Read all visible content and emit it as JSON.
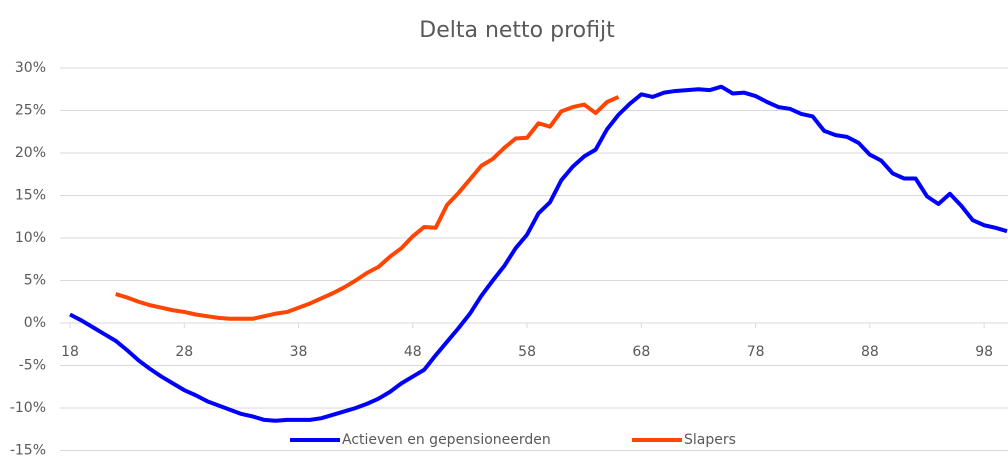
{
  "chart_data": {
    "type": "line",
    "title": "Delta netto profijt",
    "x": [
      18,
      19,
      20,
      21,
      22,
      23,
      24,
      25,
      26,
      27,
      28,
      29,
      30,
      31,
      32,
      33,
      34,
      35,
      36,
      37,
      38,
      39,
      40,
      41,
      42,
      43,
      44,
      45,
      46,
      47,
      48,
      49,
      50,
      51,
      52,
      53,
      54,
      55,
      56,
      57,
      58,
      59,
      60,
      61,
      62,
      63,
      64,
      65,
      66,
      67,
      68,
      69,
      70,
      71,
      72,
      73,
      74,
      75,
      76,
      77,
      78,
      79,
      80,
      81,
      82,
      83,
      84,
      85,
      86,
      87,
      88,
      89,
      90,
      91,
      92,
      93,
      94,
      95,
      96,
      97,
      98,
      99,
      100
    ],
    "series": [
      {
        "name": "Actieven en gepensioneerden",
        "color": "#0000ff",
        "values": [
          1.0,
          0.3,
          -0.5,
          -1.3,
          -2.1,
          -3.2,
          -4.4,
          -5.4,
          -6.3,
          -7.1,
          -7.9,
          -8.5,
          -9.2,
          -9.7,
          -10.2,
          -10.7,
          -11.0,
          -11.4,
          -11.5,
          -11.4,
          -11.4,
          -11.4,
          -11.2,
          -10.8,
          -10.4,
          -10.0,
          -9.5,
          -8.9,
          -8.1,
          -7.1,
          -6.3,
          -5.5,
          -3.8,
          -2.2,
          -0.6,
          1.1,
          3.2,
          5.0,
          6.7,
          8.8,
          10.4,
          12.9,
          14.2,
          16.8,
          18.4,
          19.6,
          20.4,
          22.8,
          24.5,
          25.8,
          26.9,
          26.6,
          27.1,
          27.3,
          27.4,
          27.5,
          27.4,
          27.8,
          27.0,
          27.1,
          26.7,
          26.0,
          25.4,
          25.2,
          24.6,
          24.3,
          22.6,
          22.1,
          21.9,
          21.2,
          19.8,
          19.1,
          17.6,
          17.0,
          17.0,
          14.9,
          14.0,
          15.2,
          13.8,
          12.1,
          11.5,
          11.2,
          10.8
        ]
      },
      {
        "name": "Slapers",
        "color": "#ff4500",
        "values": [
          null,
          null,
          null,
          null,
          3.4,
          3.0,
          2.5,
          2.1,
          1.8,
          1.5,
          1.3,
          1.0,
          0.8,
          0.6,
          0.5,
          0.5,
          0.5,
          0.8,
          1.1,
          1.3,
          1.8,
          2.3,
          2.9,
          3.5,
          4.2,
          5.0,
          5.9,
          6.6,
          7.8,
          8.8,
          10.2,
          11.3,
          11.2,
          13.9,
          15.3,
          16.9,
          18.5,
          19.3,
          20.6,
          21.7,
          21.8,
          23.5,
          23.1,
          24.9,
          25.4,
          25.7,
          24.7,
          26.0,
          26.6,
          null,
          null,
          null,
          null,
          null,
          null,
          null,
          null,
          null,
          null,
          null,
          null,
          null,
          null,
          null,
          null,
          null,
          null,
          null,
          null,
          null,
          null,
          null,
          null,
          null,
          null,
          null,
          null,
          null,
          null,
          null,
          null,
          null,
          null
        ]
      }
    ],
    "xlim": [
      18,
      100
    ],
    "xticks": [
      18,
      28,
      38,
      48,
      58,
      68,
      78,
      88,
      98
    ],
    "ylim": [
      -15,
      30
    ],
    "yticks": [
      {
        "value": -15,
        "label": "-15%"
      },
      {
        "value": -10,
        "label": "-10%"
      },
      {
        "value": -5,
        "label": "-5%"
      },
      {
        "value": 0,
        "label": "0%"
      },
      {
        "value": 5,
        "label": "5%"
      },
      {
        "value": 10,
        "label": "10%"
      },
      {
        "value": 15,
        "label": "15%"
      },
      {
        "value": 20,
        "label": "20%"
      },
      {
        "value": 25,
        "label": "25%"
      },
      {
        "value": 30,
        "label": "30%"
      }
    ],
    "grid": true,
    "legend": "bottom"
  }
}
